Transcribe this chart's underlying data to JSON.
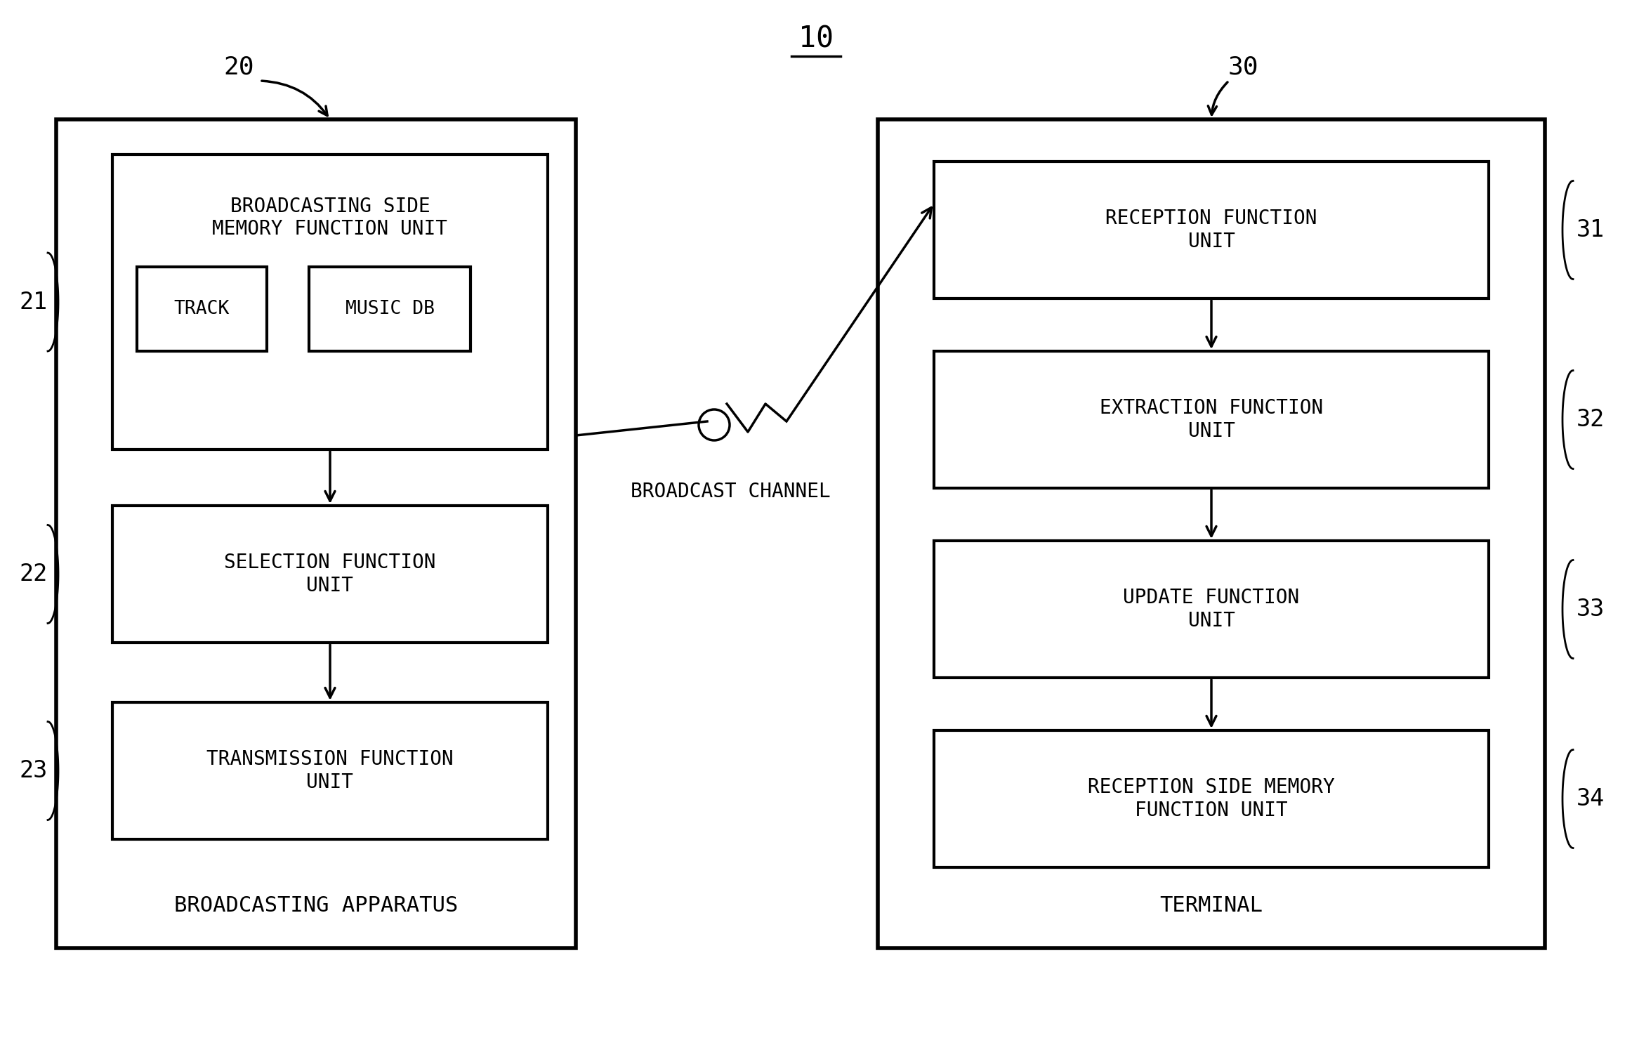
{
  "bg_color": "#ffffff",
  "title": "10",
  "left_box_label": "BROADCASTING APPARATUS",
  "right_box_label": "TERMINAL",
  "broadcast_channel_label": "BROADCAST CHANNEL",
  "label_20": "20",
  "label_30": "30",
  "label_21": "21",
  "label_22": "22",
  "label_23": "23",
  "label_31": "31",
  "label_32": "32",
  "label_33": "33",
  "label_34": "34",
  "fig_width": 23.24,
  "fig_height": 14.78,
  "dpi": 100
}
